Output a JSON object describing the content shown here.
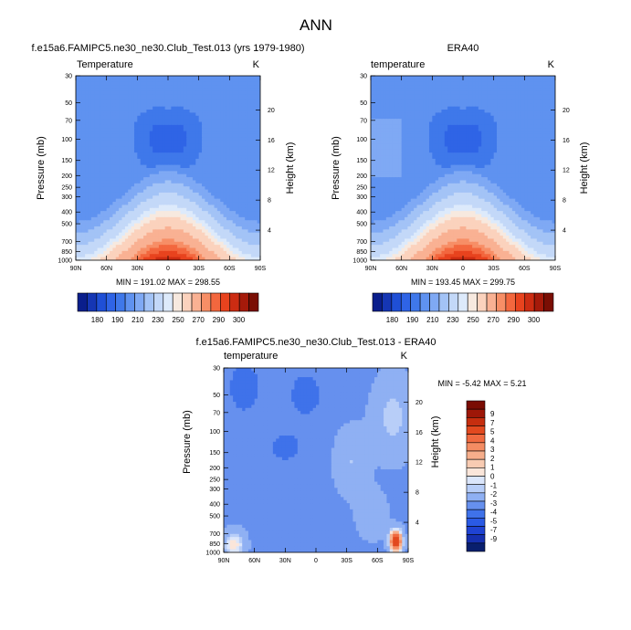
{
  "figure": {
    "title": "ANN"
  },
  "colors": {
    "abs_levels": [
      "#0a1e8c",
      "#1536b4",
      "#1f4fd6",
      "#2f64e6",
      "#3f78ea",
      "#5f92f0",
      "#7fa9f4",
      "#a3c3f6",
      "#c3d8f8",
      "#ddeafb",
      "#f7e9df",
      "#fbd2bd",
      "#f9b193",
      "#f78e66",
      "#f3673e",
      "#e8431e",
      "#cc2c12",
      "#a51a0a",
      "#7a0e04"
    ],
    "diff_levels": [
      "#091f6e",
      "#1630b0",
      "#1f43d3",
      "#2a5ae5",
      "#3f72ea",
      "#6690ee",
      "#8fb0f3",
      "#b8cef8",
      "#dbe6fb",
      "#fbe6da",
      "#f8cbb2",
      "#f6ae8b",
      "#f48c63",
      "#f06a40",
      "#e2491f",
      "#c62e0f",
      "#9e1708",
      "#7a0c03"
    ]
  },
  "chart_data": [
    {
      "type": "heatmap",
      "name": "model",
      "title": "f.e15a6.FAMIPC5.ne30_ne30.Club_Test.013 (yrs 1979-1980)",
      "left_label": "Temperature",
      "right_label": "K",
      "xlabel": "",
      "ylabel": "Pressure (mb)",
      "y2label": "Height (km)",
      "x_ticks": [
        "90N",
        "60N",
        "30N",
        "0",
        "30S",
        "60S",
        "90S"
      ],
      "x_values": [
        90,
        60,
        30,
        0,
        -30,
        -60,
        -90
      ],
      "y_ticks": [
        "30",
        "50",
        "70",
        "100",
        "150",
        "200",
        "250",
        "300",
        "400",
        "500",
        "700",
        "850",
        "1000"
      ],
      "y_values": [
        30,
        50,
        70,
        100,
        150,
        200,
        250,
        300,
        400,
        500,
        700,
        850,
        1000
      ],
      "y2_ticks": [
        "20",
        "16",
        "12",
        "8",
        "4"
      ],
      "y2_values": [
        20,
        16,
        12,
        8,
        4
      ],
      "min_max": "MIN = 191.02   MAX = 298.55",
      "min": 191.02,
      "max": 298.55,
      "cold_core": {
        "lat_range": [
          -30,
          30
        ],
        "p_range": [
          70,
          150
        ],
        "value": 195
      },
      "warm_core": {
        "lat": 0,
        "p": 1000,
        "value": 298
      }
    },
    {
      "type": "heatmap",
      "name": "obs",
      "title": "ERA40",
      "left_label": "temperature",
      "right_label": "K",
      "ylabel": "Pressure (mb)",
      "y2label": "Height (km)",
      "x_ticks": [
        "90N",
        "60N",
        "30N",
        "0",
        "30S",
        "60S",
        "90S"
      ],
      "x_values": [
        90,
        60,
        30,
        0,
        -30,
        -60,
        -90
      ],
      "y_ticks": [
        "30",
        "50",
        "70",
        "100",
        "150",
        "200",
        "250",
        "300",
        "400",
        "500",
        "700",
        "850",
        "1000"
      ],
      "y_values": [
        30,
        50,
        70,
        100,
        150,
        200,
        250,
        300,
        400,
        500,
        700,
        850,
        1000
      ],
      "y2_ticks": [
        "20",
        "16",
        "12",
        "8",
        "4"
      ],
      "y2_values": [
        20,
        16,
        12,
        8,
        4
      ],
      "min_max": "MIN = 193.45   MAX = 299.75",
      "min": 193.45,
      "max": 299.75
    },
    {
      "type": "heatmap",
      "name": "difference",
      "title": "f.e15a6.FAMIPC5.ne30_ne30.Club_Test.013 - ERA40",
      "left_label": "temperature",
      "right_label": "K",
      "ylabel": "Pressure (mb)",
      "y2label": "Height (km)",
      "x_ticks": [
        "90N",
        "60N",
        "30N",
        "0",
        "30S",
        "60S",
        "90S"
      ],
      "x_values": [
        90,
        60,
        30,
        0,
        -30,
        -60,
        -90
      ],
      "y_ticks": [
        "30",
        "50",
        "70",
        "100",
        "150",
        "200",
        "250",
        "300",
        "400",
        "500",
        "700",
        "850",
        "1000"
      ],
      "y_values": [
        30,
        50,
        70,
        100,
        150,
        200,
        250,
        300,
        400,
        500,
        700,
        850,
        1000
      ],
      "y2_ticks": [
        "20",
        "16",
        "12",
        "8",
        "4"
      ],
      "y2_values": [
        20,
        16,
        12,
        8,
        4
      ],
      "min_max": "MIN =  -5.42   MAX =    5.21",
      "min": -5.42,
      "max": 5.21
    }
  ],
  "colorbar_abs": {
    "labels": [
      "180",
      "190",
      "210",
      "230",
      "250",
      "270",
      "290",
      "300"
    ]
  },
  "colorbar_diff": {
    "labels": [
      "9",
      "7",
      "5",
      "4",
      "3",
      "2",
      "1",
      "0",
      "-1",
      "-2",
      "-3",
      "-4",
      "-5",
      "-7",
      "-9"
    ]
  }
}
